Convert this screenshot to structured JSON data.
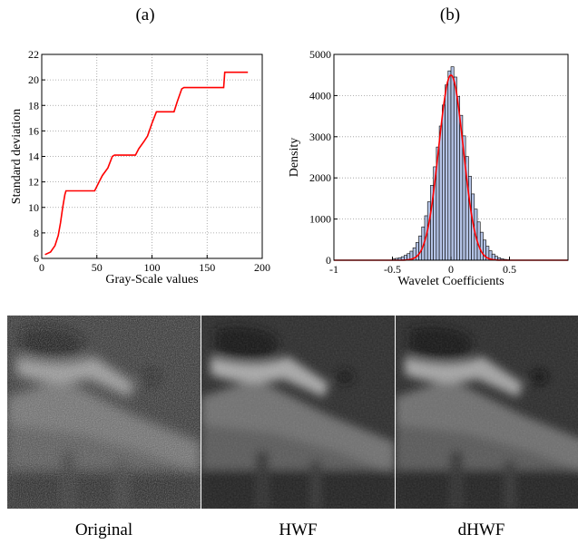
{
  "panels": {
    "a_label": "(a)",
    "b_label": "(b)"
  },
  "captions": [
    "Original",
    "HWF",
    "dHWF"
  ],
  "colors": {
    "line_red": "#ff0000",
    "bar_fill": "#b4c3e6",
    "bar_edge": "#000000",
    "grid": "#999999"
  },
  "chart_data": [
    {
      "type": "line",
      "xlabel": "Gray-Scale values",
      "ylabel": "Standard deviation",
      "xlim": [
        0,
        200
      ],
      "ylim": [
        6,
        22
      ],
      "xticks": [
        0,
        50,
        100,
        150,
        200
      ],
      "yticks": [
        6,
        8,
        10,
        12,
        14,
        16,
        18,
        20,
        22
      ],
      "grid": "dotted",
      "series": [
        {
          "color": "#ff0000",
          "x": [
            3,
            8,
            12,
            15,
            17,
            19,
            21,
            22,
            48,
            52,
            55,
            60,
            64,
            66,
            85,
            88,
            93,
            96,
            100,
            104,
            120,
            123,
            127,
            129,
            165,
            166,
            187
          ],
          "y": [
            6.3,
            6.5,
            7.0,
            7.8,
            8.8,
            10.0,
            11.0,
            11.3,
            11.3,
            12.0,
            12.5,
            13.1,
            14.0,
            14.1,
            14.1,
            14.6,
            15.2,
            15.6,
            16.6,
            17.5,
            17.5,
            18.3,
            19.3,
            19.4,
            19.4,
            20.6,
            20.6
          ]
        }
      ]
    },
    {
      "type": "bar",
      "xlabel": "Wavelet Coefficients",
      "ylabel": "Density",
      "xlim": [
        -1,
        1
      ],
      "ylim": [
        0,
        5000
      ],
      "xticks": [
        -1,
        -0.5,
        0,
        0.5
      ],
      "yticks": [
        0,
        1000,
        2000,
        3000,
        4000,
        5000
      ],
      "grid": "dotted-horizontal",
      "histogram": {
        "bin_start": -0.5,
        "bin_width": 0.025,
        "values": [
          30,
          45,
          60,
          85,
          120,
          160,
          220,
          300,
          430,
          590,
          810,
          1080,
          1420,
          1820,
          2270,
          2750,
          3260,
          3770,
          4260,
          4600,
          4700,
          4450,
          3980,
          3520,
          3020,
          2520,
          2040,
          1610,
          1240,
          930,
          680,
          490,
          340,
          230,
          150,
          95,
          60,
          35,
          20,
          12
        ]
      },
      "fit_curve": {
        "color": "#ff0000",
        "mean": 0.0,
        "peak": 4500,
        "sigma": 0.105
      }
    }
  ]
}
